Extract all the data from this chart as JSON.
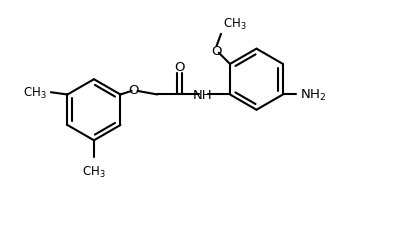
{
  "bg_color": "#ffffff",
  "line_color": "#000000",
  "line_width": 1.5,
  "font_size": 8.5,
  "figsize": [
    4.08,
    2.26
  ],
  "dpi": 100,
  "xlim": [
    0,
    9.0
  ],
  "ylim": [
    0,
    5.0
  ]
}
